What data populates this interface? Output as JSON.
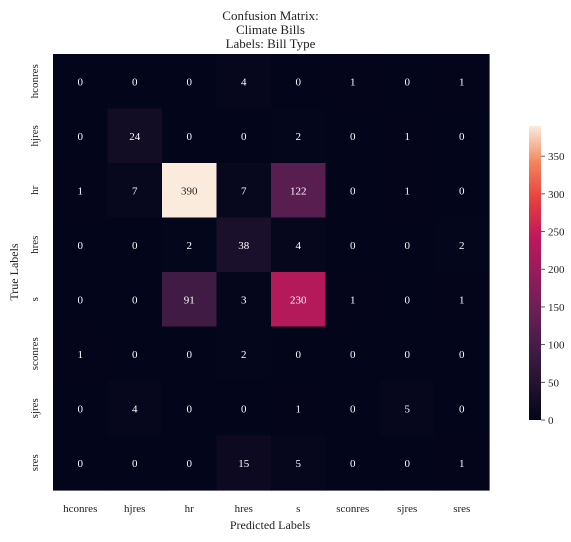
{
  "chart_data": {
    "type": "heatmap",
    "title": [
      "Confusion Matrix:",
      "Climate Bills",
      "Labels: Bill Type"
    ],
    "xlabel": "Predicted Labels",
    "ylabel": "True Labels",
    "x_categories": [
      "hconres",
      "hjres",
      "hr",
      "hres",
      "s",
      "sconres",
      "sjres",
      "sres"
    ],
    "y_categories": [
      "hconres",
      "hjres",
      "hr",
      "hres",
      "s",
      "sconres",
      "sjres",
      "sres"
    ],
    "values": [
      [
        0,
        0,
        0,
        4,
        0,
        1,
        0,
        1
      ],
      [
        0,
        24,
        0,
        0,
        2,
        0,
        1,
        0
      ],
      [
        1,
        7,
        390,
        7,
        122,
        0,
        1,
        0
      ],
      [
        0,
        0,
        2,
        38,
        4,
        0,
        0,
        2
      ],
      [
        0,
        0,
        91,
        3,
        230,
        1,
        0,
        1
      ],
      [
        1,
        0,
        0,
        2,
        0,
        0,
        0,
        0
      ],
      [
        0,
        4,
        0,
        0,
        1,
        0,
        5,
        0
      ],
      [
        0,
        0,
        0,
        15,
        5,
        0,
        0,
        1
      ]
    ],
    "colorbar": {
      "min": 0,
      "max": 390,
      "ticks": [
        0,
        50,
        100,
        150,
        200,
        250,
        300,
        350
      ]
    },
    "colormap": "rocket"
  }
}
